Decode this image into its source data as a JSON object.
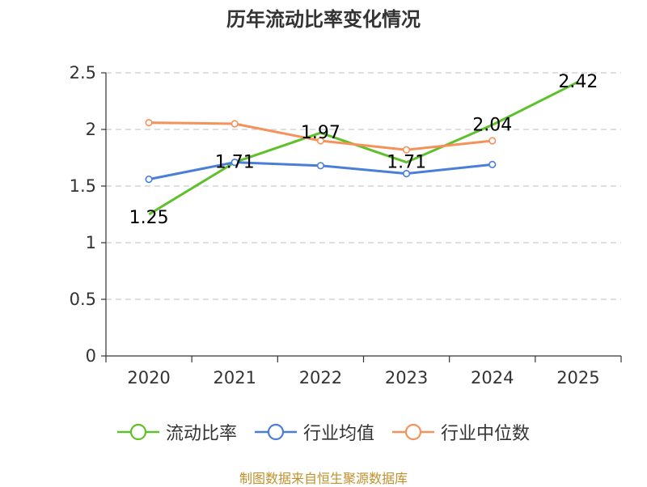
{
  "chart_data": {
    "type": "line",
    "title": "历年流动比率变化情况",
    "categories": [
      "2020",
      "2021",
      "2022",
      "2023",
      "2024",
      "2025"
    ],
    "ylim": [
      0,
      2.5
    ],
    "yticks": [
      "0",
      "0.5",
      "1",
      "1.5",
      "2",
      "2.5"
    ],
    "ytick_values": [
      0,
      0.5,
      1,
      1.5,
      2,
      2.5
    ],
    "grid": true,
    "legend_position": "bottom",
    "series": [
      {
        "name": "流动比率",
        "color": "#5ec12b",
        "values": [
          1.25,
          1.71,
          1.97,
          1.71,
          2.04,
          2.42
        ],
        "labels": [
          "1.25",
          "1.71",
          "1.97",
          "1.71",
          "2.04",
          "2.42"
        ],
        "markers": false
      },
      {
        "name": "行业均值",
        "color": "#4a7fd9",
        "values": [
          1.56,
          1.71,
          1.68,
          1.61,
          1.69,
          null
        ],
        "markers": true
      },
      {
        "name": "行业中位数",
        "color": "#f5925a",
        "values": [
          2.06,
          2.05,
          1.9,
          1.82,
          1.9,
          null
        ],
        "markers": true
      }
    ]
  },
  "footer": "制图数据来自恒生聚源数据库"
}
